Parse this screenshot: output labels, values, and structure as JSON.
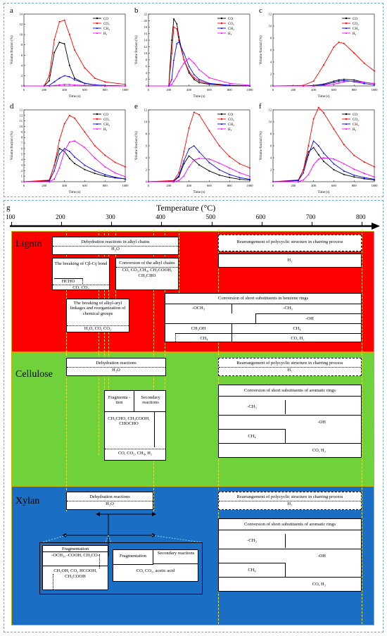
{
  "charts": {
    "y_label": "Volume fraction (%)",
    "x_label": "Time (s)",
    "legend": [
      "CO",
      "CO₂",
      "CH₄",
      "H₂"
    ],
    "colors": [
      "#000000",
      "#ff0000",
      "#0000ff",
      "#ff00ff"
    ],
    "x_ticks": [
      "0",
      "200",
      "400",
      "600",
      "800",
      "1000"
    ]
  },
  "chart_data": [
    {
      "panel": "a",
      "type": "line",
      "x": [
        0,
        200,
        250,
        300,
        350,
        400,
        450,
        500,
        600,
        700,
        800,
        1000
      ],
      "ylim": [
        0,
        14
      ],
      "yticks": [
        0,
        2,
        4,
        6,
        8,
        10,
        12,
        14
      ],
      "series": [
        {
          "name": "CO",
          "values": [
            0,
            0,
            1,
            6.5,
            8.5,
            8.2,
            4,
            1.5,
            0.5,
            0.2,
            0.1,
            0
          ]
        },
        {
          "name": "CO₂",
          "values": [
            0,
            0,
            2,
            9,
            12.5,
            12.8,
            10,
            7,
            3.5,
            1.5,
            0.8,
            0.3
          ]
        },
        {
          "name": "CH₄",
          "values": [
            0,
            0,
            0.1,
            0.8,
            1.5,
            2,
            1.8,
            1.2,
            0.5,
            0.2,
            0.1,
            0
          ]
        },
        {
          "name": "H₂",
          "values": [
            0,
            0,
            0,
            0.1,
            0.2,
            0.3,
            0.3,
            0.2,
            0.1,
            0.1,
            0,
            0
          ]
        }
      ]
    },
    {
      "panel": "b",
      "type": "line",
      "x": [
        0,
        200,
        230,
        250,
        280,
        300,
        350,
        400,
        450,
        500,
        600,
        800,
        1000
      ],
      "ylim": [
        0,
        22
      ],
      "yticks": [
        0,
        2,
        4,
        6,
        8,
        10,
        12,
        14,
        16,
        18,
        20,
        22
      ],
      "series": [
        {
          "name": "CO",
          "values": [
            0,
            0,
            14,
            20.5,
            19,
            15,
            8,
            4,
            2,
            1,
            0.5,
            0.1,
            0
          ]
        },
        {
          "name": "CO₂",
          "values": [
            0,
            0,
            10,
            18,
            17.5,
            14,
            8,
            4.5,
            2.5,
            1.5,
            0.6,
            0.2,
            0
          ]
        },
        {
          "name": "CH₄",
          "values": [
            0,
            0,
            2,
            8,
            13,
            13.5,
            10,
            6,
            3.5,
            2,
            0.8,
            0.2,
            0
          ]
        },
        {
          "name": "H₂",
          "values": [
            0,
            0,
            0.5,
            1.5,
            3,
            4.5,
            7,
            8.5,
            7,
            5,
            2.5,
            0.8,
            0.2
          ]
        }
      ]
    },
    {
      "panel": "c",
      "type": "line",
      "x": [
        0,
        300,
        400,
        500,
        600,
        650,
        700,
        800,
        900,
        1000
      ],
      "ylim": [
        0,
        12
      ],
      "yticks": [
        0,
        2,
        4,
        6,
        8,
        10,
        12
      ],
      "series": [
        {
          "name": "CO",
          "values": [
            0,
            0,
            0.1,
            0.3,
            0.8,
            1,
            1.1,
            1,
            0.6,
            0.4
          ]
        },
        {
          "name": "CO₂",
          "values": [
            0,
            0.1,
            0.8,
            3.5,
            6.5,
            7.3,
            7.1,
            5.5,
            3.8,
            2.5
          ]
        },
        {
          "name": "CH₄",
          "values": [
            0,
            0,
            0,
            0.2,
            0.6,
            0.8,
            0.9,
            0.7,
            0.4,
            0.2
          ]
        },
        {
          "name": "H₂",
          "values": [
            0,
            0,
            0,
            0.1,
            0.3,
            0.5,
            0.7,
            0.8,
            0.6,
            0.4
          ]
        }
      ]
    },
    {
      "panel": "d",
      "type": "line",
      "x": [
        0,
        250,
        300,
        350,
        400,
        450,
        500,
        600,
        700,
        800,
        900,
        1000
      ],
      "ylim": [
        0,
        13
      ],
      "yticks": [
        0,
        1,
        2,
        3,
        4,
        5,
        6,
        7,
        8,
        9,
        10,
        11,
        12,
        13
      ],
      "series": [
        {
          "name": "CO",
          "values": [
            0,
            0.2,
            3,
            6,
            5.5,
            4.2,
            3.3,
            2.2,
            1.5,
            1,
            0.7,
            0.5
          ]
        },
        {
          "name": "CO₂",
          "values": [
            0,
            0.3,
            3,
            7.5,
            10.5,
            12,
            11.5,
            9,
            6.5,
            4.8,
            3.5,
            2.7
          ]
        },
        {
          "name": "CH₄",
          "values": [
            0,
            0.1,
            2,
            5,
            6,
            5.5,
            4.5,
            3,
            2,
            1.3,
            0.8,
            0.5
          ]
        },
        {
          "name": "H₂",
          "values": [
            0,
            0,
            0.5,
            2.5,
            5.5,
            7.2,
            7.4,
            6.2,
            4.3,
            2.7,
            1.6,
            0.9
          ]
        }
      ]
    },
    {
      "panel": "e",
      "type": "line",
      "x": [
        0,
        250,
        300,
        350,
        400,
        450,
        500,
        600,
        700,
        800,
        900,
        1000
      ],
      "ylim": [
        0,
        12
      ],
      "yticks": [
        0,
        2,
        4,
        6,
        8,
        10,
        12
      ],
      "series": [
        {
          "name": "CO",
          "values": [
            0,
            0.1,
            0.8,
            3,
            4.3,
            3.6,
            2.8,
            1.8,
            1.1,
            0.7,
            0.4,
            0.3
          ]
        },
        {
          "name": "CO₂",
          "values": [
            0,
            0.2,
            1.5,
            5,
            9,
            11.6,
            11.2,
            8.5,
            6,
            4.2,
            3,
            2.3
          ]
        },
        {
          "name": "CH₄",
          "values": [
            0,
            0.1,
            1,
            3.5,
            5.5,
            6,
            5,
            3.2,
            2,
            1.2,
            0.7,
            0.4
          ]
        },
        {
          "name": "H₂",
          "values": [
            0,
            0,
            0.2,
            1,
            2.5,
            3.6,
            3.9,
            3.8,
            3.1,
            2.3,
            1.5,
            0.9
          ]
        }
      ]
    },
    {
      "panel": "f",
      "type": "line",
      "x": [
        0,
        250,
        300,
        350,
        400,
        450,
        500,
        600,
        700,
        800,
        900,
        1000
      ],
      "ylim": [
        0,
        12
      ],
      "yticks": [
        2,
        4,
        6,
        8,
        10,
        12
      ],
      "series": [
        {
          "name": "CO",
          "values": [
            0,
            0.2,
            2,
            5,
            5.7,
            4.5,
            3.4,
            2,
            1.2,
            0.8,
            0.5,
            0.3
          ]
        },
        {
          "name": "CO₂",
          "values": [
            0,
            0.3,
            2,
            6,
            10.5,
            12.4,
            11.5,
            8.8,
            6.2,
            4.4,
            3.3,
            2.5
          ]
        },
        {
          "name": "CH₄",
          "values": [
            0,
            0.2,
            1.5,
            4.5,
            6.8,
            6,
            4.8,
            3,
            1.8,
            1.1,
            0.7,
            0.4
          ]
        },
        {
          "name": "H₂",
          "values": [
            0,
            0,
            0.3,
            1.2,
            2.8,
            3.8,
            4,
            3.8,
            3,
            2.1,
            1.4,
            0.8
          ]
        }
      ]
    }
  ],
  "g": {
    "letter": "g",
    "title": "Temperature (°C)",
    "ticks": [
      "100",
      "200",
      "300",
      "400",
      "500",
      "600",
      "700",
      "800"
    ],
    "bands": {
      "lignin": "Lignin",
      "cellulose": "Cellulose",
      "xylan": "Xylan"
    },
    "band_colors": {
      "lignin": "#ff0000",
      "cellulose": "#6fd23a",
      "xylan": "#1a6fc4"
    },
    "lignin": {
      "dehydration": "Dehydration reactions in alkyl chains",
      "dehydration_out": "H₂O",
      "rearr": "Rearrangement of polycyclic structure in charring process",
      "rearr_out": "H₂",
      "breaking_cc": "The breaking of Cβ-Cγ bond",
      "hcho": "HCHO",
      "co_co2": "CO, CO₂",
      "conv_alkyl": "Conversion of the alkyl chains",
      "conv_alkyl_out": "CO, CO₂,CH₄, CH₃COOH, CH₃CHO",
      "breaking_aryl": "The breaking of alkyl-aryl linkages and reorganization of chemical groups",
      "breaking_aryl_out": "H₂O, CO, CO₂",
      "conv_short": "Conversion of short substituents in benzene rings",
      "och3": "-OCH₃",
      "ch3": "-CH₃",
      "oh": "-OH",
      "ch3oh": "CH₃OH",
      "ch4": "CH₄",
      "ch4b": "CH₄",
      "co_h2": "CO, H₂"
    },
    "cellulose": {
      "dehydration": "Dehydration reactions",
      "dehydration_out": "H₂O",
      "rearr": "Rearrangement of polycyclic structure in charring process",
      "rearr_out": "H₂",
      "fragmentation": "Fragmenta -tion",
      "secondary": "Secondary reactions",
      "frag_out": "CH₃CHO, CH₃COOH, CHOCHO",
      "sec_out": "CO, CO₂, CH₄, H₂",
      "conv_short": "Conversion of short substituents of aromatic rings",
      "ch3": "-CH₃",
      "oh": "-OH",
      "ch4": "CH₄",
      "co_h2": "CO, H₂"
    },
    "xylan": {
      "dehydration": "Dehydration reactions",
      "dehydration_out": "H₂O",
      "rearr": "Rearrangement of polycyclic structure in charring process",
      "rearr_out": "H₂",
      "fragmentation": "Fragmentation",
      "frag_groups": "-OCH₃, -COOH, CH₃CO-",
      "frag_out": "CH₃OH, CO₂ HCOOH, CH₃COOH",
      "fragmentation2": "Fragmentation",
      "secondary": "Secondary reactions",
      "sec_out": "CO, CO₂, acetic acid",
      "conv_short": "Conversion of short substituents of aromatic rings",
      "ch3": "-CH₃",
      "oh": "-OH",
      "ch4": "CH₄",
      "co_h2": "CO, H₂"
    }
  }
}
